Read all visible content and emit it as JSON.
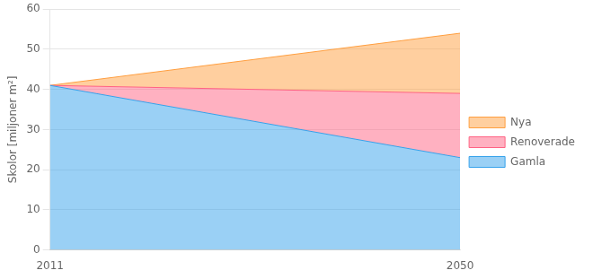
{
  "chart_data": {
    "type": "area",
    "stacked": true,
    "ylabel": "Skolor [miljoner m²]",
    "x": [
      2011,
      2050
    ],
    "series": [
      {
        "name": "Gamla",
        "values": [
          41,
          23
        ]
      },
      {
        "name": "Renoverade",
        "values": [
          0,
          16
        ]
      },
      {
        "name": "Nya",
        "values": [
          0,
          15
        ]
      }
    ],
    "xlim": [
      2011,
      2050
    ],
    "xticks": [
      2011,
      2050
    ],
    "ylim": [
      0,
      60
    ],
    "yticks": [
      0,
      10,
      20,
      30,
      40,
      50,
      60
    ],
    "grid": "y",
    "legend": "right"
  }
}
